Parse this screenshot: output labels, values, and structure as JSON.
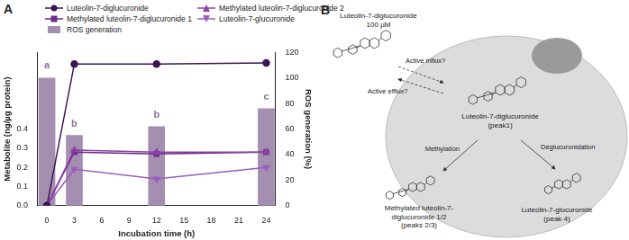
{
  "chart_data": {
    "type": "line",
    "panel_label": "A",
    "x_label": "Incubation time (h)",
    "y_label": "Metabolite (ng/µg protein)",
    "y2_label": "ROS generation (%)",
    "x": [
      0,
      3,
      12,
      24
    ],
    "xlim": [
      -1,
      25
    ],
    "xticks": [
      0,
      3,
      6,
      9,
      12,
      15,
      18,
      21,
      24
    ],
    "ylim": [
      0,
      0.8
    ],
    "yticks": [
      {
        "value": 0,
        "label": "0.0"
      },
      0.1,
      0.2,
      0.3,
      0.4
    ],
    "y2lim": [
      0,
      120
    ],
    "y2ticks": [
      0,
      20,
      40,
      60,
      80,
      100,
      120
    ],
    "grid": false,
    "series": [
      {
        "name": "Luteolin-7-diglucuronide",
        "color": "#3b1650",
        "marker": "circle",
        "values": [
          0,
          0.74,
          0.74,
          0.745
        ]
      },
      {
        "name": "Methylated luteolin-7-diglucuronide 2",
        "color": "#8e3fa6",
        "marker": "triangle",
        "values": [
          0,
          0.29,
          0.28,
          0.28
        ]
      },
      {
        "name": "Methylated luteolin-7-diglucuronide 1",
        "color": "#6a2a85",
        "marker": "square",
        "values": [
          0,
          0.28,
          0.27,
          0.28
        ]
      },
      {
        "name": "Luteolin-7-glucuronide",
        "color": "#9a5cc0",
        "marker": "triangle_down",
        "values": [
          0,
          0.19,
          0.14,
          0.2
        ]
      },
      {
        "name": "ROS generation",
        "type": "bar",
        "axis": "y2",
        "color": "#a58fb0",
        "values": [
          100,
          55,
          62,
          76
        ]
      }
    ],
    "annotations": [
      {
        "x": 0,
        "y": 106,
        "text": "a"
      },
      {
        "x": 3,
        "y": 60,
        "text": "b"
      },
      {
        "x": 12,
        "y": 67,
        "text": "b"
      },
      {
        "x": 24,
        "y": 81,
        "text": "c"
      }
    ]
  },
  "diagram": {
    "panel_label": "B",
    "nodes": [
      {
        "lines": [
          "Luteolin-7-diglucuronide",
          "100 µM"
        ]
      },
      {
        "lines": [
          "Luteolin-7-diglucuronide",
          "(peak1)"
        ]
      },
      {
        "lines": [
          "Methylated luteolin-7-",
          "diglucuronide 1/2",
          "(peaks 2/3)"
        ]
      },
      {
        "lines": [
          "Luteolin-7-glucuronide",
          "(peak 4)"
        ]
      }
    ],
    "edges": [
      {
        "label": "Active influx?"
      },
      {
        "label": "Active efflux?"
      },
      {
        "label": "Methylation"
      },
      {
        "label": "Deglucuronidation"
      }
    ]
  }
}
